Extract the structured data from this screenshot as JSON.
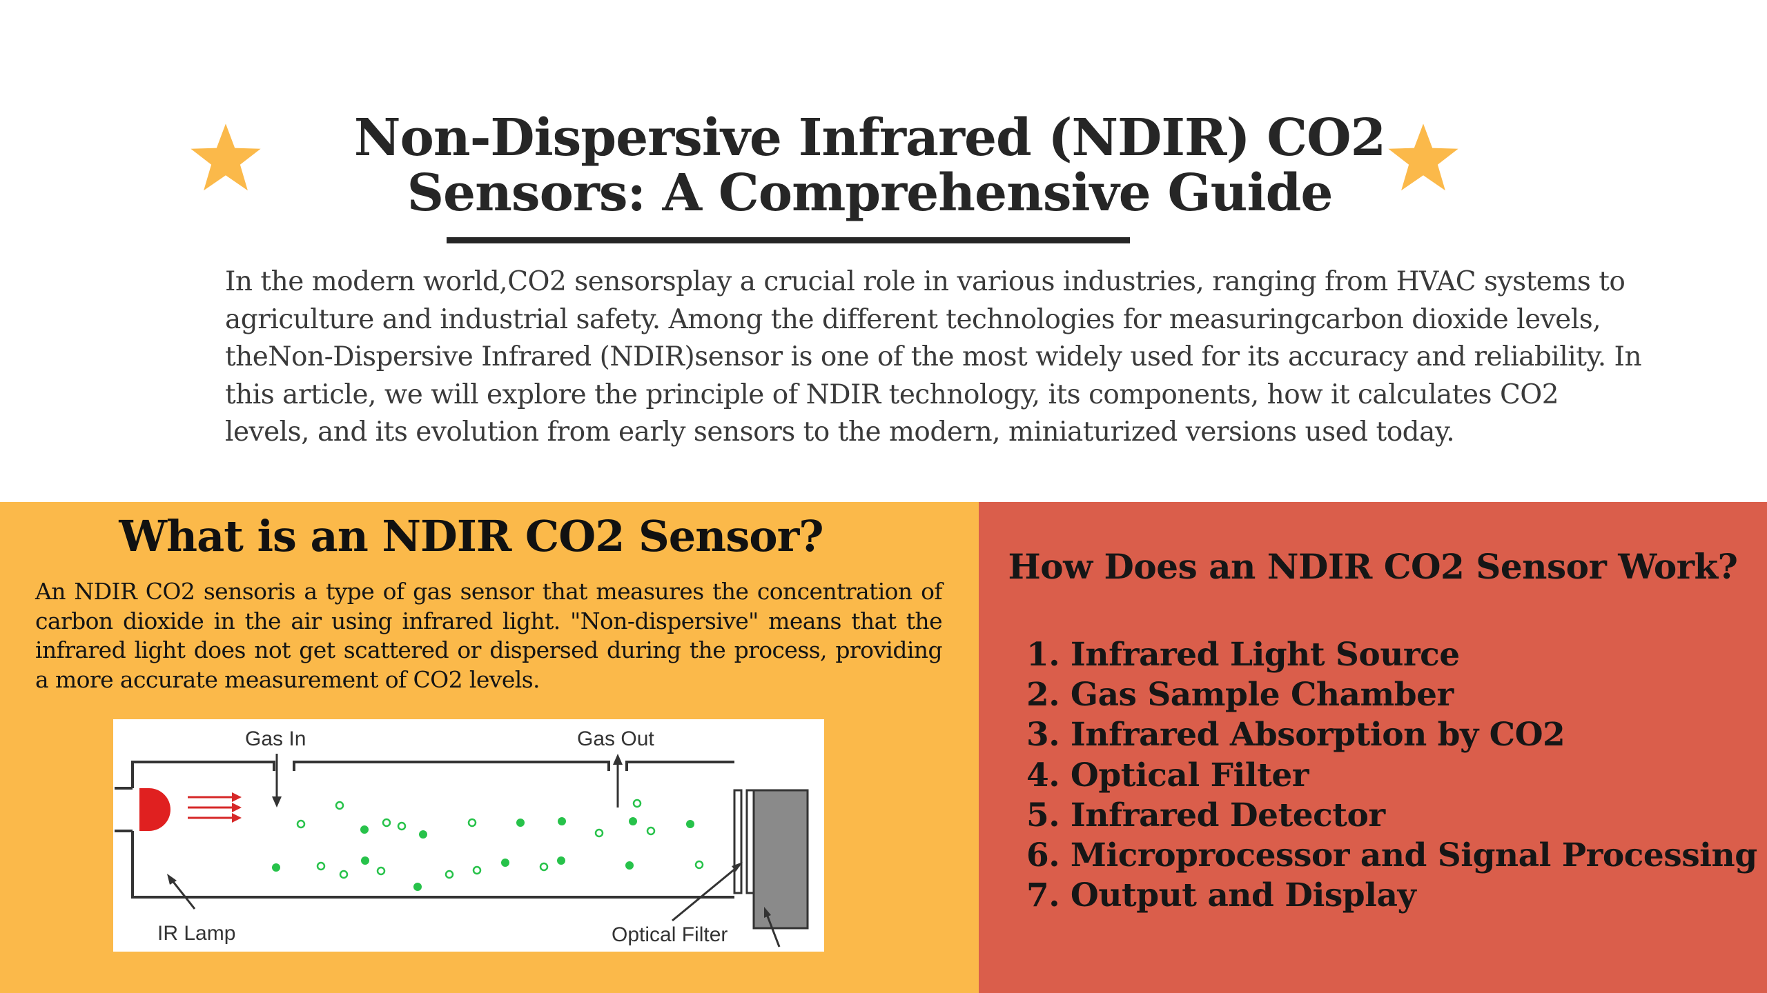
{
  "header": {
    "title_line1": "Non-Dispersive Infrared (NDIR) CO2",
    "title_line2": "Sensors: A Comprehensive Guide",
    "star_color": "#fbb94a"
  },
  "intro": {
    "text": "In the modern world,CO2 sensorsplay a crucial role in various industries, ranging from HVAC systems to agriculture and industrial safety. Among the different technologies for measuringcarbon dioxide levels, theNon-Dispersive Infrared (NDIR)sensor is one of the most widely used for its accuracy and reliability. In this article, we will explore the principle of NDIR technology, its components, how it calculates CO2 levels, and its evolution from early sensors to the modern, miniaturized versions used today."
  },
  "left_section": {
    "background": "#fbb94a",
    "heading": "What is an NDIR CO2 Sensor?",
    "body": "An NDIR CO2 sensoris a type of gas sensor that measures the concentration of carbon dioxide in the air using infrared light. \"Non-dispersive\" means that the infrared light does not get scattered or dispersed during the process, providing a more accurate measurement of CO2 levels.",
    "diagram": {
      "label_gas_in": "Gas In",
      "label_gas_out": "Gas Out",
      "label_ir_lamp": "IR Lamp",
      "label_optical_filter": "Optical Filter",
      "lamp_color": "#e02020",
      "molecule_color": "#27c24a"
    }
  },
  "right_section": {
    "background": "#da5e4b",
    "heading": "How Does an NDIR CO2 Sensor Work?",
    "steps": [
      "1. Infrared Light Source",
      "2. Gas Sample Chamber",
      "3. Infrared Absorption by CO2",
      "4. Optical Filter",
      "5. Infrared Detector",
      "6. Microprocessor and Signal Processing",
      "7. Output and Display"
    ]
  }
}
